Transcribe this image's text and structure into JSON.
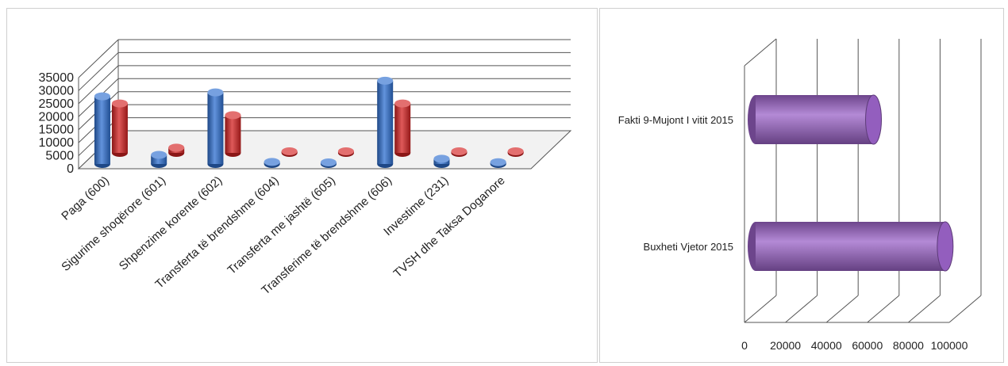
{
  "chart_data": [
    {
      "type": "bar",
      "orientation": "vertical",
      "style": "3d-cylinder",
      "categories": [
        "Paga (600)",
        "Sigurime shoqërore (601)",
        "Shpenzime korente (602)",
        "Transferta të brendshme (604)",
        "Transferta me jashtë (605)",
        "Transferime të brendshme (606)",
        "Investime (231)",
        "TVSH dhe Taksa Doganore"
      ],
      "series": [
        {
          "color": "#2e6fd0",
          "values": [
            26000,
            3500,
            27500,
            800,
            400,
            32000,
            2000,
            700
          ]
        },
        {
          "color": "#d42222",
          "values": [
            19000,
            2000,
            14500,
            300,
            300,
            19000,
            200,
            300
          ]
        }
      ],
      "ylim": [
        0,
        35000
      ],
      "yticks": [
        "0",
        "5000",
        "10000",
        "15000",
        "20000",
        "25000",
        "30000",
        "35000"
      ],
      "grid": true
    },
    {
      "type": "bar",
      "orientation": "horizontal",
      "style": "3d-cylinder",
      "categories": [
        "Fakti 9-Mujont I vitit 2015",
        "Buxheti Vjetor 2015"
      ],
      "values": [
        63000,
        98000
      ],
      "color": "#9b63c8",
      "xlim": [
        0,
        100000
      ],
      "xticks": [
        "0",
        "20000",
        "40000",
        "60000",
        "80000",
        "100000"
      ],
      "grid": true
    }
  ]
}
